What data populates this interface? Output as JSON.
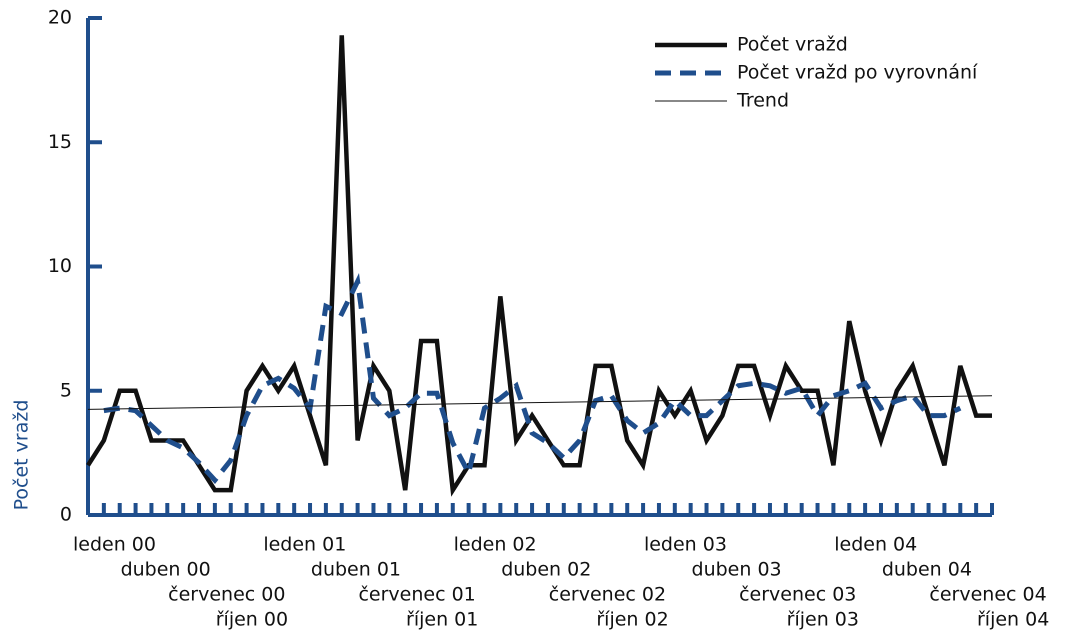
{
  "chart_data": {
    "type": "line",
    "y_label": "Počet vražd",
    "categories": [
      "leden 00",
      null,
      null,
      "duben 00",
      null,
      null,
      "červenec 00",
      null,
      null,
      "říjen 00",
      null,
      null,
      "leden 01",
      null,
      null,
      "duben 01",
      null,
      null,
      "červenec 01",
      null,
      null,
      "říjen 01",
      null,
      null,
      "leden 02",
      null,
      null,
      "duben 02",
      null,
      null,
      "červenec 02",
      null,
      null,
      "říjen 02",
      null,
      null,
      "leden 03",
      null,
      null,
      "duben 03",
      null,
      null,
      "červenec 03",
      null,
      null,
      "říjen 03",
      null,
      null,
      "leden 04",
      null,
      null,
      "duben 04",
      null,
      null,
      "červenec 04",
      null,
      null,
      "říjen 04"
    ],
    "series": [
      {
        "name": "Počet vražd",
        "color": "#111111",
        "dash": false,
        "values": [
          2,
          3,
          5,
          5,
          3,
          3,
          3,
          2,
          1,
          1,
          5,
          6,
          5,
          6,
          4,
          2,
          19.3,
          3,
          6,
          5,
          1,
          7,
          7,
          1,
          2,
          2,
          8.8,
          3,
          4,
          3,
          2,
          2,
          6,
          6,
          3,
          2,
          5,
          4,
          5,
          3,
          4,
          6,
          6,
          4,
          6,
          5,
          5,
          2,
          7.8,
          5,
          3,
          5,
          6,
          4,
          2,
          6,
          4,
          4
        ]
      },
      {
        "name": "Počet vražd po vyrovnání",
        "color": "#1f4e8c",
        "dash": true,
        "values": [
          null,
          4.2,
          4.3,
          4.2,
          3.6,
          3,
          2.7,
          2.1,
          1.4,
          2.2,
          4,
          5.2,
          5.5,
          5.1,
          4.3,
          8.4,
          8.1,
          9.4,
          4.7,
          4,
          4.3,
          4.9,
          4.9,
          2.9,
          1.7,
          4.3,
          4.7,
          5.2,
          3.3,
          2.9,
          2.3,
          3,
          4.6,
          4.8,
          3.8,
          3.3,
          3.7,
          4.6,
          4,
          4,
          4.6,
          5.2,
          5.3,
          5.2,
          4.9,
          5.1,
          4,
          4.8,
          5,
          5.3,
          4.3,
          4.6,
          4.8,
          4,
          4,
          4.3,
          null,
          null
        ]
      }
    ],
    "trend": {
      "name": "Trend",
      "color": "#111111",
      "start": 4.25,
      "end": 4.8
    },
    "ylim": [
      0,
      20
    ],
    "yticks": [
      0,
      5,
      10,
      15,
      20
    ],
    "axis_color": "#1f4e8c",
    "legend": "top right"
  }
}
